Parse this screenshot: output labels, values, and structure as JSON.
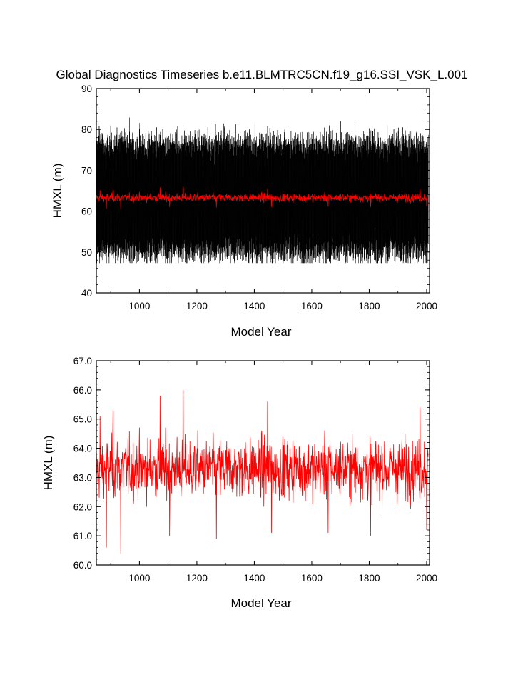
{
  "title": "Global Diagnostics Timeseries b.e11.BLMTRC5CN.f19_g16.SSI_VSK_L.001",
  "colors": {
    "monthly": "#000000",
    "annual": "#ff0000",
    "axes": "#000000",
    "background": "#ffffff"
  },
  "chart_data": [
    {
      "type": "line",
      "title": "Global Diagnostics Timeseries b.e11.BLMTRC5CN.f19_g16.SSI_VSK_L.001",
      "xlabel": "Model Year",
      "ylabel": "HMXL (m)",
      "xlim": [
        850,
        2010
      ],
      "ylim": [
        40,
        90
      ],
      "xticks": [
        1000,
        1200,
        1400,
        1600,
        1800,
        2000
      ],
      "yticks": [
        40,
        50,
        60,
        70,
        80,
        90
      ],
      "ytick_labels": [
        "40",
        "50",
        "60",
        "70",
        "80",
        "90"
      ],
      "grid": false,
      "legend": "none",
      "series": [
        {
          "color": "#000000",
          "kind": "monthly",
          "x_range": [
            850,
            2005
          ],
          "baseline": 63.3,
          "seasonal_amplitude": 12.5,
          "noise": 2.2,
          "min": 47.3,
          "max": 83.2
        },
        {
          "color": "#ff0000",
          "kind": "annual",
          "x_range": [
            850,
            2005
          ],
          "mean": 63.3,
          "min": 60.4,
          "max": 66.0
        }
      ]
    },
    {
      "type": "line",
      "title": "",
      "xlabel": "Model Year",
      "ylabel": "HMXL (m)",
      "xlim": [
        850,
        2010
      ],
      "ylim": [
        60,
        67
      ],
      "xticks": [
        1000,
        1200,
        1400,
        1600,
        1800,
        2000
      ],
      "yticks": [
        60,
        61,
        62,
        63,
        64,
        65,
        66,
        67
      ],
      "ytick_labels": [
        "60.0",
        "61.0",
        "62.0",
        "63.0",
        "64.0",
        "65.0",
        "66.0",
        "67.0"
      ],
      "grid": false,
      "legend": "none",
      "series": [
        {
          "color": "#ff0000",
          "kind": "annual",
          "x_range": [
            850,
            2005
          ],
          "mean": 63.3,
          "std": 0.85,
          "min": 60.4,
          "max": 66.0,
          "key_points": [
            {
              "x": 863,
              "y": 65.1
            },
            {
              "x": 885,
              "y": 60.6
            },
            {
              "x": 908,
              "y": 65.3
            },
            {
              "x": 935,
              "y": 60.4
            },
            {
              "x": 1072,
              "y": 65.8
            },
            {
              "x": 1105,
              "y": 61.0
            },
            {
              "x": 1152,
              "y": 66.0
            },
            {
              "x": 1268,
              "y": 60.9
            },
            {
              "x": 1446,
              "y": 65.6
            },
            {
              "x": 1460,
              "y": 61.1
            },
            {
              "x": 1657,
              "y": 61.1
            },
            {
              "x": 1805,
              "y": 61.0
            },
            {
              "x": 1977,
              "y": 65.4
            },
            {
              "x": 2000,
              "y": 61.2
            }
          ]
        }
      ]
    }
  ]
}
